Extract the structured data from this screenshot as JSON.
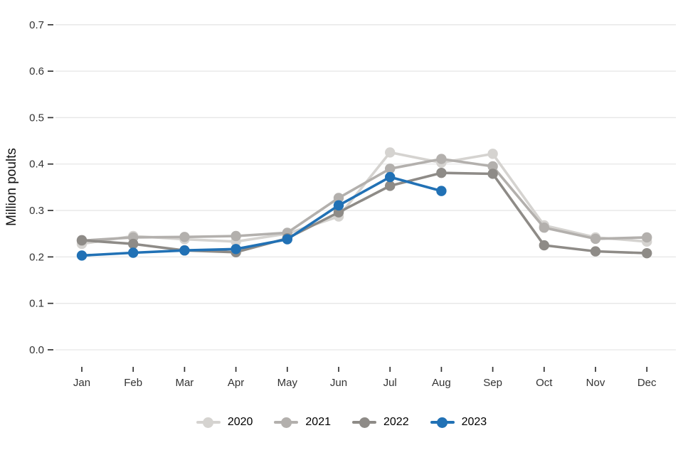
{
  "chart": {
    "y_axis_label": "Million poults",
    "background_color": "#ffffff",
    "gridline_color": "#e6e6e6",
    "tick_color": "#333333"
  },
  "chart_data": {
    "type": "line",
    "title": "",
    "xlabel": "",
    "ylabel": "Million poults",
    "x": [
      "Jan",
      "Feb",
      "Mar",
      "Apr",
      "May",
      "Jun",
      "Jul",
      "Aug",
      "Sep",
      "Oct",
      "Nov",
      "Dec"
    ],
    "yticks": [
      0.0,
      0.1,
      0.2,
      0.3,
      0.4,
      0.5,
      0.6,
      0.7
    ],
    "ylim": [
      0.0,
      0.7
    ],
    "grid": true,
    "legend_position": "bottom",
    "series": [
      {
        "name": "2020",
        "color": "#d5d3d0",
        "values": [
          0.228,
          0.245,
          0.238,
          0.233,
          0.25,
          0.287,
          0.425,
          0.403,
          0.422,
          0.268,
          0.242,
          0.233
        ]
      },
      {
        "name": "2021",
        "color": "#b3b0ad",
        "values": [
          0.235,
          0.242,
          0.243,
          0.245,
          0.252,
          0.327,
          0.39,
          0.411,
          0.395,
          0.263,
          0.239,
          0.242
        ]
      },
      {
        "name": "2022",
        "color": "#8e8b87",
        "values": [
          0.236,
          0.228,
          0.214,
          0.21,
          0.24,
          0.296,
          0.353,
          0.381,
          0.379,
          0.225,
          0.212,
          0.208
        ]
      },
      {
        "name": "2023",
        "color": "#2171b5",
        "values": [
          0.203,
          0.209,
          0.214,
          0.217,
          0.238,
          0.311,
          0.372,
          0.342,
          null,
          null,
          null,
          null
        ]
      }
    ]
  }
}
